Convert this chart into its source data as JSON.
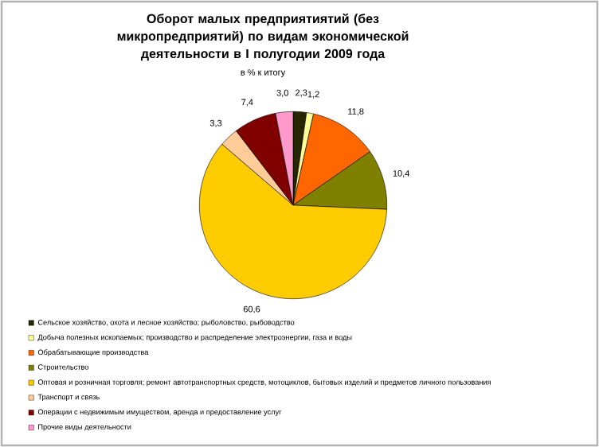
{
  "chart_data": {
    "type": "pie",
    "title": "Оборот малых предприятиятий (без микропредприятий) по видам экономической деятельности в I полугодии 2009 года",
    "subtitle": "в % к итогу",
    "categories": [
      "Сельское хозяйство, охота и лесное хозяйство; рыболовство, рыбоводство",
      "Добыча полезных ископаемых; производство и распределение электроэнергии, газа и воды",
      "Обрабатывающие производства",
      "Строительство",
      "Оптовая и розничная торговля; ремонт автотранспортных средств, мотоциклов, бытовых изделий и предметов личного пользования",
      "Транспорт и связь",
      "Операции с недвижимым имуществом, аренда и предоставление услуг",
      "Прочие виды деятельности"
    ],
    "values": [
      2.3,
      1.2,
      11.8,
      10.4,
      60.6,
      3.3,
      7.4,
      3.0
    ],
    "value_labels": [
      "2,3",
      "1,2",
      "11,8",
      "10,4",
      "60,6",
      "3,3",
      "7,4",
      "3,0"
    ],
    "colors": [
      "#262600",
      "#ffff99",
      "#ff6600",
      "#808000",
      "#ffcc00",
      "#ffcc99",
      "#800000",
      "#ff99cc"
    ],
    "legend": "bottom"
  }
}
